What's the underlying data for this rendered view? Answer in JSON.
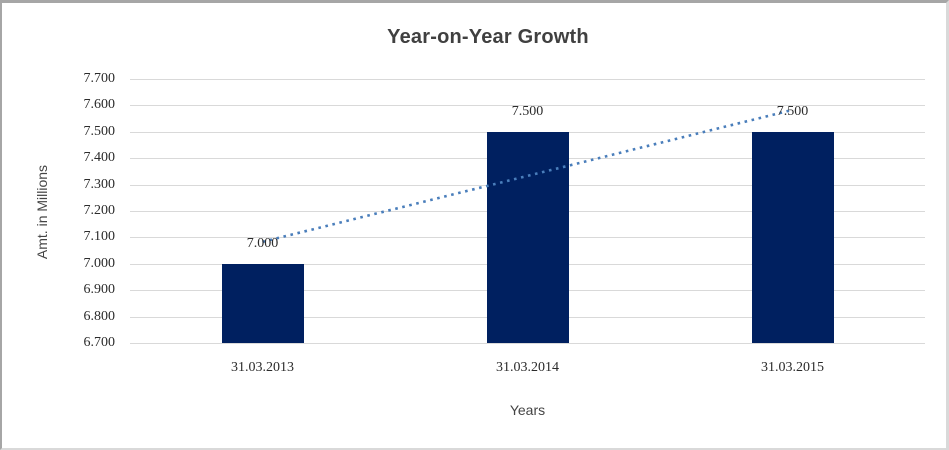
{
  "chart_data": {
    "type": "bar",
    "title": "Year-on-Year Growth",
    "xlabel": "Years",
    "ylabel": "Amt. in Millions",
    "categories": [
      "31.03.2013",
      "31.03.2014",
      "31.03.2015"
    ],
    "values": [
      7.0,
      7.5,
      7.5
    ],
    "data_labels": [
      "7.000",
      "7.500",
      "7.500"
    ],
    "ylim": [
      6.7,
      7.7
    ],
    "ytick_step": 0.1,
    "ytick_labels": [
      "7.700",
      "7.600",
      "7.500",
      "7.400",
      "7.300",
      "7.200",
      "7.100",
      "7.000",
      "6.900",
      "6.800",
      "6.700"
    ],
    "grid": true,
    "legend": "none",
    "trendline": {
      "style": "dotted",
      "start_value": 7.083,
      "end_value": 7.583,
      "color": "#4a7ebb"
    },
    "colors": {
      "bar": "#002060",
      "gridline": "#d9d9d9",
      "title_text": "#404040",
      "axis_text": "#2b2b2b",
      "background": "#ffffff"
    }
  }
}
